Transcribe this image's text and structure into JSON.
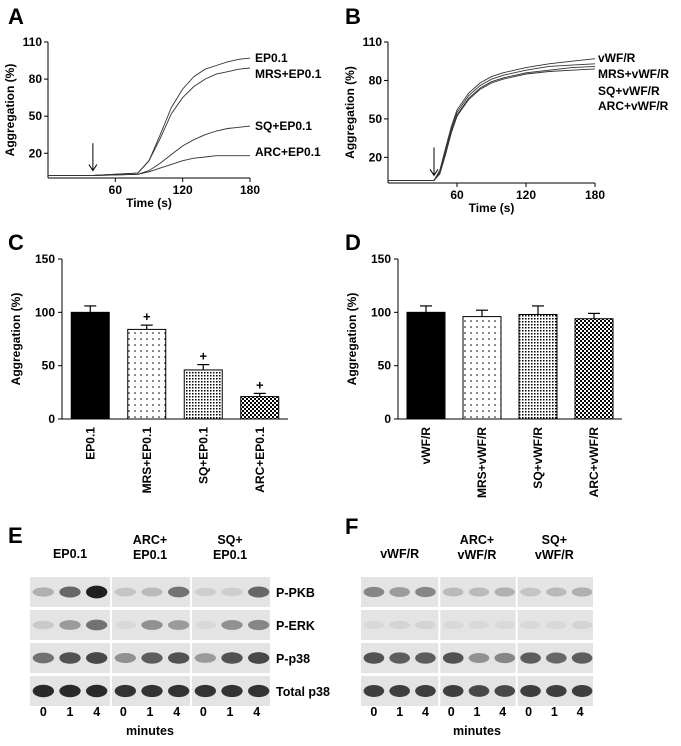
{
  "panel_labels": [
    "A",
    "B",
    "C",
    "D",
    "E",
    "F"
  ],
  "chart_data": [
    {
      "panel": "A",
      "type": "line",
      "xlabel": "Time (s)",
      "ylabel": "Aggregation (%)",
      "xlim": [
        0,
        180
      ],
      "ylim": [
        0,
        110
      ],
      "xticks": [
        60,
        120,
        180
      ],
      "yticks": [
        20,
        50,
        80,
        110
      ],
      "grid": false,
      "arrow_x": 40,
      "series": [
        {
          "name": "EP0.1",
          "x": [
            0,
            40,
            80,
            90,
            100,
            110,
            120,
            130,
            140,
            150,
            160,
            170,
            180
          ],
          "y": [
            0,
            0,
            2,
            12,
            33,
            55,
            70,
            80,
            86,
            89,
            92,
            94,
            95
          ]
        },
        {
          "name": "MRS+EP0.1",
          "x": [
            0,
            40,
            80,
            90,
            100,
            110,
            120,
            130,
            140,
            150,
            160,
            170,
            180
          ],
          "y": [
            0,
            0,
            2,
            12,
            30,
            50,
            63,
            72,
            78,
            82,
            84,
            86,
            87
          ]
        },
        {
          "name": "SQ+EP0.1",
          "x": [
            0,
            40,
            80,
            90,
            100,
            110,
            120,
            130,
            140,
            150,
            160,
            170,
            180
          ],
          "y": [
            0,
            0,
            1,
            4,
            10,
            17,
            24,
            29,
            33,
            36,
            38,
            39,
            40
          ]
        },
        {
          "name": "ARC+EP0.1",
          "x": [
            0,
            40,
            80,
            90,
            100,
            110,
            120,
            130,
            140,
            150,
            160,
            170,
            180
          ],
          "y": [
            0,
            0,
            1,
            3,
            6,
            9,
            12,
            14,
            15,
            16,
            16,
            16,
            16
          ]
        }
      ]
    },
    {
      "panel": "B",
      "type": "line",
      "xlabel": "Time (s)",
      "ylabel": "Aggregation (%)",
      "xlim": [
        0,
        180
      ],
      "ylim": [
        0,
        110
      ],
      "xticks": [
        60,
        120,
        180
      ],
      "yticks": [
        20,
        50,
        80,
        110
      ],
      "grid": false,
      "arrow_x": 40,
      "series": [
        {
          "name": "vWF/R",
          "x": [
            0,
            40,
            45,
            50,
            55,
            60,
            70,
            80,
            90,
            100,
            120,
            140,
            160,
            180
          ],
          "y": [
            0,
            0,
            8,
            25,
            42,
            55,
            68,
            76,
            81,
            84,
            88,
            91,
            93,
            95
          ]
        },
        {
          "name": "MRS+vWF/R",
          "x": [
            0,
            40,
            45,
            50,
            55,
            60,
            70,
            80,
            90,
            100,
            120,
            140,
            160,
            180
          ],
          "y": [
            0,
            0,
            7,
            23,
            40,
            53,
            66,
            74,
            79,
            82,
            86,
            89,
            90,
            91
          ]
        },
        {
          "name": "SQ+vWF/R",
          "x": [
            0,
            40,
            45,
            50,
            55,
            60,
            70,
            80,
            90,
            100,
            120,
            140,
            160,
            180
          ],
          "y": [
            0,
            0,
            6,
            21,
            38,
            51,
            64,
            72,
            77,
            80,
            84,
            86,
            88,
            89
          ]
        },
        {
          "name": "ARC+vWF/R",
          "x": [
            0,
            40,
            45,
            50,
            55,
            60,
            70,
            80,
            90,
            100,
            120,
            140,
            160,
            180
          ],
          "y": [
            0,
            0,
            5,
            20,
            37,
            50,
            63,
            71,
            76,
            79,
            83,
            85,
            86,
            87
          ]
        }
      ]
    },
    {
      "panel": "C",
      "type": "bar",
      "ylabel": "Aggregation (%)",
      "ylim": [
        0,
        150
      ],
      "yticks": [
        0,
        50,
        100,
        150
      ],
      "categories": [
        "EP0.1",
        "MRS+EP0.1",
        "SQ+EP0.1",
        "ARC+EP0.1"
      ],
      "values": [
        100,
        84,
        46,
        21
      ],
      "errors": [
        6,
        4,
        5,
        3
      ],
      "marks": [
        "",
        "+",
        "+",
        "+"
      ],
      "patterns": [
        "solid",
        "sparse-dots",
        "dense-dots",
        "checker"
      ]
    },
    {
      "panel": "D",
      "type": "bar",
      "ylabel": "Aggregation (%)",
      "ylim": [
        0,
        150
      ],
      "yticks": [
        0,
        50,
        100,
        150
      ],
      "categories": [
        "vWF/R",
        "MRS+vWF/R",
        "SQ+vWF/R",
        "ARC+vWF/R"
      ],
      "values": [
        100,
        96,
        98,
        94
      ],
      "errors": [
        6,
        6,
        8,
        5
      ],
      "marks": [
        "",
        "",
        "",
        ""
      ],
      "patterns": [
        "solid",
        "sparse-dots",
        "dense-dots",
        "checker"
      ]
    }
  ],
  "blots": {
    "E": {
      "groups": [
        "EP0.1",
        "ARC+\nEP0.1",
        "SQ+\nEP0.1"
      ],
      "row_labels": [
        "P-PKB",
        "P-ERK",
        "P-p38",
        "Total p38"
      ],
      "lane_labels": [
        "0",
        "1",
        "4",
        "0",
        "1",
        "4",
        "0",
        "1",
        "4"
      ],
      "xlabel": "minutes"
    },
    "F": {
      "groups": [
        "vWF/R",
        "ARC+\nvWF/R",
        "SQ+\nvWF/R"
      ],
      "lane_labels": [
        "0",
        "1",
        "4",
        "0",
        "1",
        "4",
        "0",
        "1",
        "4"
      ],
      "xlabel": "minutes"
    }
  }
}
